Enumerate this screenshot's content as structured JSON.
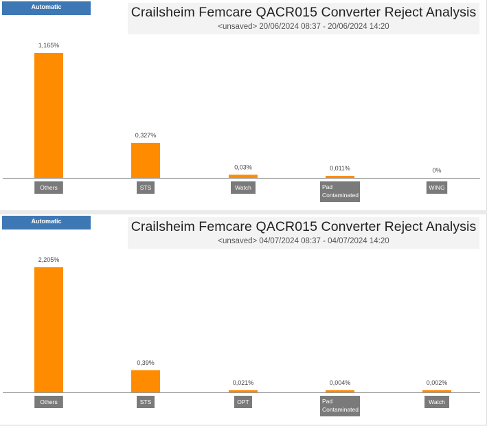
{
  "panels": [
    {
      "tab_label": "Automatic",
      "title": "Crailsheim Femcare QACR015 Converter  Reject Analysis",
      "subtitle": "<unsaved> 20/06/2024 08:37 - 20/06/2024 14:20"
    },
    {
      "tab_label": "Automatic",
      "title": "Crailsheim Femcare QACR015 Converter  Reject Analysis",
      "subtitle": "<unsaved> 04/07/2024 08:37 - 04/07/2024 14:20"
    }
  ],
  "colors": {
    "bar": "#ff8c00",
    "tick_box": "#7a7a7a",
    "tab": "#3d78b5"
  },
  "chart_data": [
    {
      "type": "bar",
      "title": "Crailsheim Femcare QACR015 Converter  Reject Analysis",
      "categories": [
        "Others",
        "STS",
        "Watch",
        "Pad Contaminated",
        "WING"
      ],
      "values": [
        1.165,
        0.327,
        0.03,
        0.011,
        0
      ],
      "value_labels": [
        "1,165%",
        "0,327%",
        "0,03%",
        "0,011%",
        "0%"
      ],
      "unit": "%",
      "grid": false
    },
    {
      "type": "bar",
      "title": "Crailsheim Femcare QACR015 Converter  Reject Analysis",
      "categories": [
        "Others",
        "STS",
        "OPT",
        "Pad Contaminated",
        "Watch"
      ],
      "values": [
        2.205,
        0.39,
        0.021,
        0.004,
        0.002
      ],
      "value_labels": [
        "2,205%",
        "0,39%",
        "0,021%",
        "0,004%",
        "0,002%"
      ],
      "unit": "%",
      "grid": false
    }
  ]
}
